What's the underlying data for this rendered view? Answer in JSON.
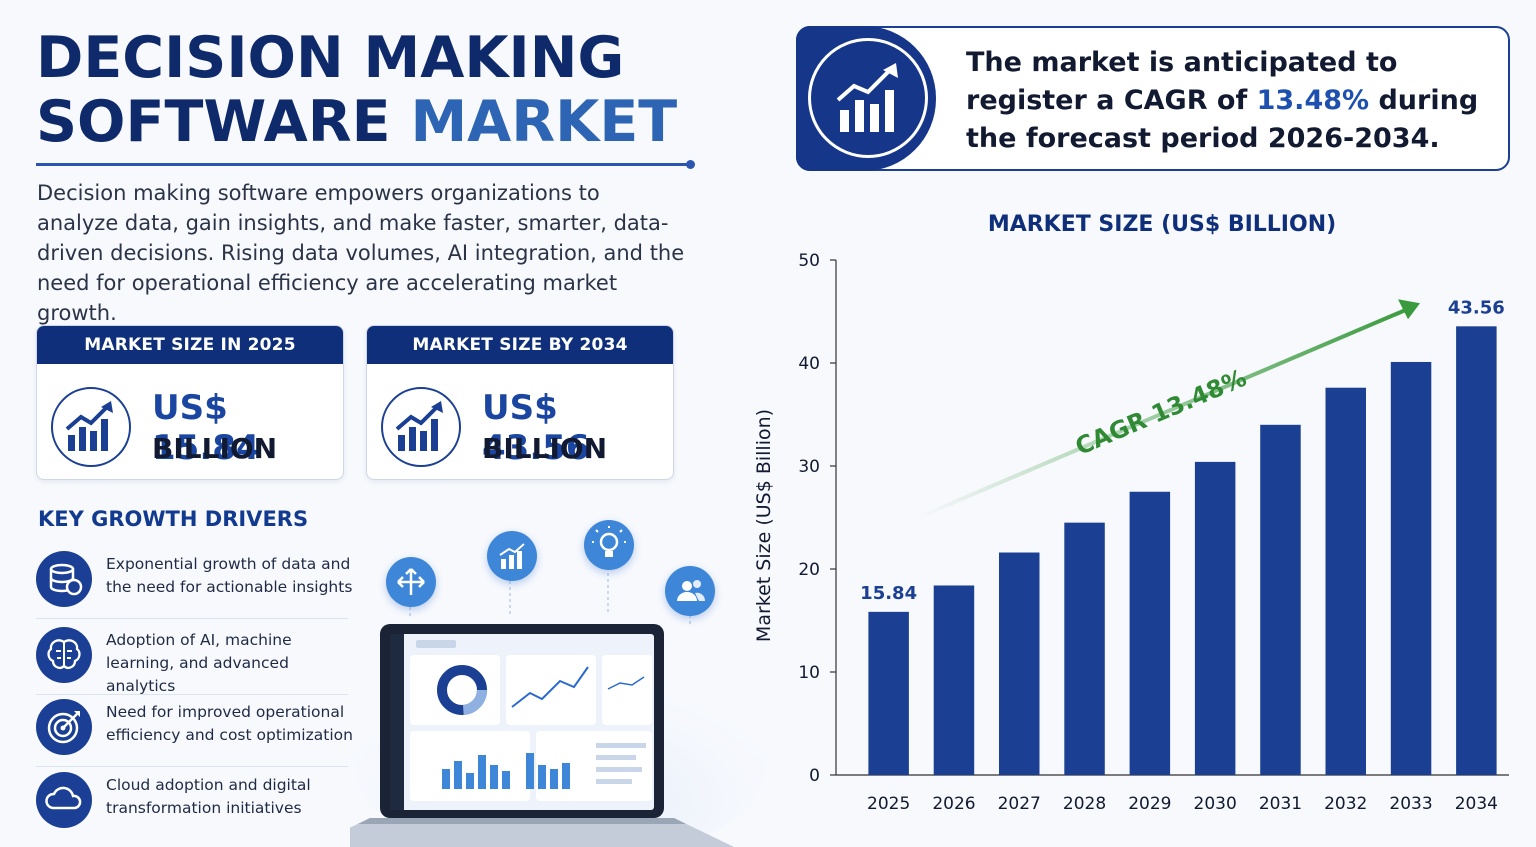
{
  "title": {
    "line1": "DECISION MAKING",
    "line2a": "SOFTWARE",
    "line2b": "MARKET"
  },
  "description": "Decision making software empowers organizations to analyze data, gain insights, and make faster, smarter, data-driven decisions. Rising data volumes, AI integration, and the need for operational efficiency are accelerating market growth.",
  "cards": [
    {
      "header": "MARKET SIZE IN 2025",
      "value": "US$ 15.84",
      "unit": "BILLION"
    },
    {
      "header": "MARKET SIZE BY 2034",
      "value": "US$ 43.56",
      "unit": "BILLION"
    }
  ],
  "drivers": {
    "title": "KEY GROWTH DRIVERS",
    "items": [
      {
        "text": "Exponential growth of data and the need for actionable insights",
        "icon": "database-icon"
      },
      {
        "text": "Adoption of AI, machine learning, and advanced analytics",
        "icon": "brain-icon"
      },
      {
        "text": "Need for improved operational efficiency and cost optimization",
        "icon": "target-icon"
      },
      {
        "text": "Cloud adoption and digital transformation initiatives",
        "icon": "cloud-icon"
      }
    ]
  },
  "cagr_box": {
    "pre": "The market is anticipated to register a CAGR of",
    "value": "13.48%",
    "post": "during the forecast period 2026-2034."
  },
  "colors": {
    "navy": "#0f2f7a",
    "bar": "#1a3f93",
    "accent": "#2d64b3",
    "green": "#3a9a3e"
  },
  "chart_data": {
    "type": "bar",
    "title": "MARKET SIZE (US$ BILLION)",
    "ylabel": "Market Size (US$ Billion)",
    "xlabel": "",
    "categories": [
      "2025",
      "2026",
      "2027",
      "2028",
      "2029",
      "2030",
      "2031",
      "2032",
      "2033",
      "2034"
    ],
    "values": [
      15.84,
      18.4,
      21.6,
      24.5,
      27.5,
      30.4,
      34.0,
      37.6,
      40.1,
      43.56
    ],
    "data_labels": {
      "2025": "15.84",
      "2034": "43.56"
    },
    "ylim": [
      0,
      50
    ],
    "yticks": [
      0,
      10,
      20,
      30,
      40,
      50
    ],
    "annotation": "CAGR 13.48%",
    "grid": false
  }
}
